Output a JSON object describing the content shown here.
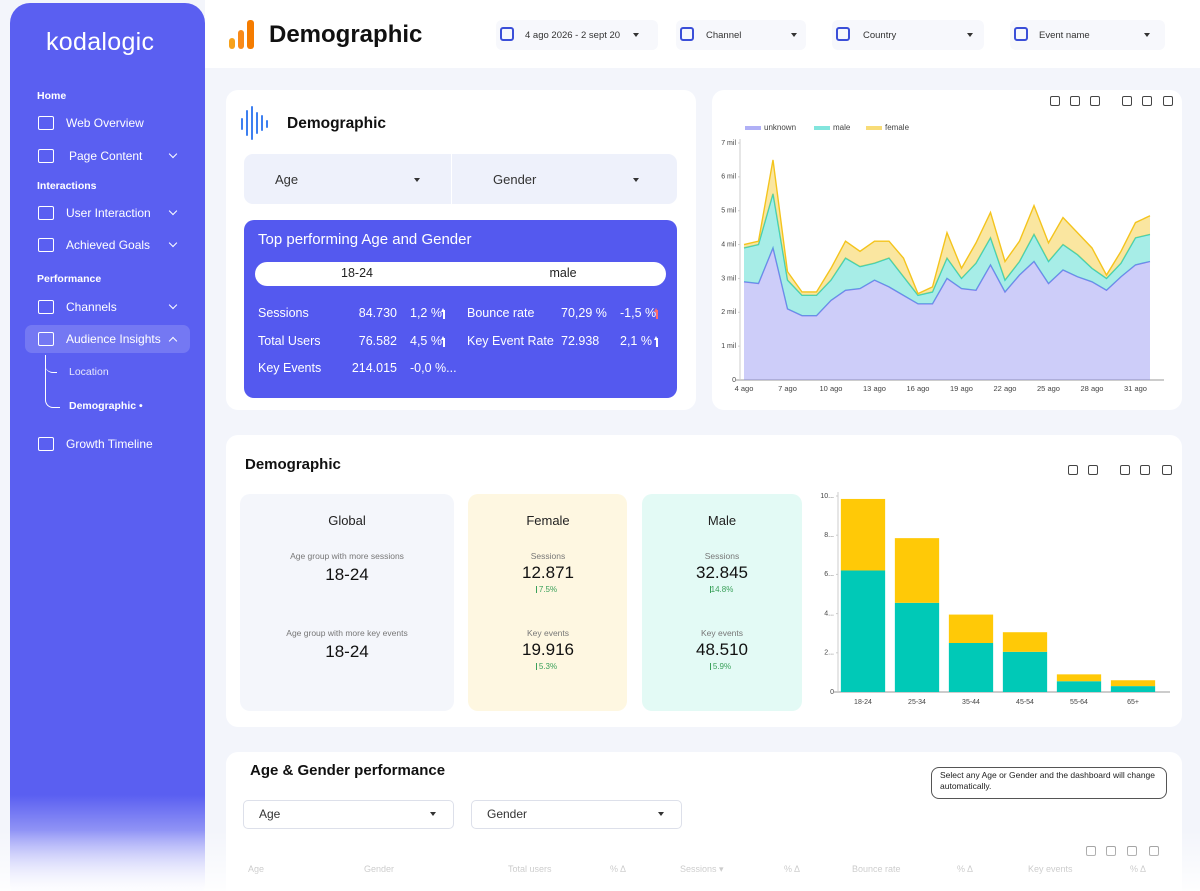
{
  "sidebar": {
    "brand": "kodalogic",
    "sections": [
      {
        "heading": "Home",
        "items": [
          "Web Overview",
          "Page Content"
        ]
      },
      {
        "heading": "Interactions",
        "items": [
          "User Interaction",
          "Achieved Goals"
        ]
      },
      {
        "heading": "Performance",
        "items": [
          "Channels",
          "Audience Insights",
          "Location",
          "Demographic •",
          "Growth Timeline"
        ]
      }
    ]
  },
  "header": {
    "title": "Demographic",
    "filters": [
      "4 ago 2026 - 2 sept 20",
      "Channel",
      "Country",
      "Event name"
    ]
  },
  "top_card": {
    "title": "Demographic",
    "selectors": [
      "Age",
      "Gender"
    ],
    "highlight": {
      "title": "Top performing Age and Gender",
      "age": "18-24",
      "gender": "male",
      "metrics": [
        {
          "label": "Sessions",
          "value": "84.730",
          "change": "1,2 %"
        },
        {
          "label": "Bounce rate",
          "value": "70,29 %",
          "change": "-1,5 %"
        },
        {
          "label": "Total Users",
          "value": "76.582",
          "change": "4,5 %"
        },
        {
          "label": "Key Event Rate",
          "value": "72.938",
          "change": "2,1 %"
        },
        {
          "label": "Key Events",
          "value": "214.015",
          "change": "-0,0 %..."
        }
      ]
    }
  },
  "kpi_section": {
    "title": "Demographic",
    "cards": [
      {
        "title": "Global",
        "rows": [
          {
            "label": "Age group with more sessions",
            "value": "18-24"
          },
          {
            "label": "Age group with more key events",
            "value": "18-24"
          }
        ]
      },
      {
        "title": "Female",
        "rows": [
          {
            "label": "Sessions",
            "value": "12.871",
            "change": "7.5%"
          },
          {
            "label": "Key events",
            "value": "19.916",
            "change": "5.3%"
          }
        ]
      },
      {
        "title": "Male",
        "rows": [
          {
            "label": "Sessions",
            "value": "32.845",
            "change": "14.8%"
          },
          {
            "label": "Key events",
            "value": "48.510",
            "change": "5.9%"
          }
        ]
      }
    ]
  },
  "table_section": {
    "title": "Age & Gender performance",
    "note": "Select any Age or Gender and the dashboard will change automatically.",
    "selectors": [
      "Age",
      "Gender"
    ],
    "columns": [
      "Age",
      "Gender",
      "Total users",
      "% Δ",
      "Sessions ▾",
      "% Δ",
      "Bounce rate",
      "% Δ",
      "Key events",
      "% Δ"
    ]
  },
  "chart_data": [
    {
      "type": "area",
      "stacked": true,
      "legend": "top-left",
      "grid": false,
      "categories": [
        "4 ago",
        null,
        null,
        "7 ago",
        null,
        null,
        "10 ago",
        null,
        null,
        "13 ago",
        null,
        null,
        "16 ago",
        null,
        null,
        "19 ago",
        null,
        null,
        "22 ago",
        null,
        null,
        "25 ago",
        null,
        null,
        "28 ago",
        null,
        null,
        "31 ago",
        null
      ],
      "series": [
        {
          "name": "unknown",
          "color": "#7b7cf0",
          "values": [
            2.9,
            2.85,
            3.9,
            2.1,
            1.9,
            1.9,
            2.35,
            2.65,
            2.7,
            2.95,
            2.75,
            2.5,
            2.25,
            2.25,
            3.0,
            2.7,
            2.65,
            3.4,
            2.6,
            3.1,
            3.5,
            2.85,
            3.25,
            3.05,
            2.9,
            2.65,
            3.05,
            3.4,
            3.5
          ]
        },
        {
          "name": "male",
          "color": "#2ed3c6",
          "values": [
            1.0,
            1.15,
            1.6,
            0.85,
            0.6,
            0.6,
            0.6,
            0.95,
            0.65,
            0.5,
            0.85,
            0.55,
            0.25,
            0.35,
            0.6,
            0.3,
            0.8,
            0.8,
            0.35,
            0.4,
            0.8,
            0.65,
            0.75,
            0.65,
            0.4,
            0.35,
            0.4,
            0.8,
            0.8
          ]
        },
        {
          "name": "female",
          "color": "#f4c41d",
          "values": [
            0.1,
            0.1,
            1.0,
            0.25,
            0.1,
            0.1,
            0.35,
            0.5,
            0.45,
            0.65,
            0.5,
            0.55,
            0.05,
            0.15,
            0.75,
            0.3,
            0.6,
            0.75,
            0.55,
            0.6,
            0.85,
            0.55,
            0.8,
            0.65,
            0.6,
            0.1,
            0.35,
            0.45,
            0.55
          ]
        }
      ],
      "ylim": [
        0,
        7
      ],
      "yticks": [
        0,
        {
          "value": 1,
          "label": "1 mil"
        },
        {
          "value": 2,
          "label": "2 mil"
        },
        {
          "value": 3,
          "label": "3 mil"
        },
        {
          "value": 4,
          "label": "4 mil"
        },
        {
          "value": 5,
          "label": "5 mil"
        },
        {
          "value": 6,
          "label": "6 mil"
        },
        {
          "value": 7,
          "label": "7 mil"
        }
      ]
    },
    {
      "type": "bar",
      "stacked": true,
      "grid": false,
      "categories": [
        "18-24",
        "25-34",
        "35-44",
        "45-54",
        "55-64",
        "65+"
      ],
      "series": [
        {
          "color": "#00c9b7",
          "values": [
            6.2,
            4.55,
            2.5,
            2.05,
            0.55,
            0.3
          ]
        },
        {
          "color": "#ffc907",
          "values": [
            3.65,
            3.3,
            1.45,
            1.0,
            0.35,
            0.3
          ]
        }
      ],
      "ylim": [
        0,
        10
      ],
      "yticks": [
        0,
        {
          "value": 2,
          "label": "2..."
        },
        {
          "value": 4,
          "label": "4..."
        },
        {
          "value": 6,
          "label": "6..."
        },
        {
          "value": 8,
          "label": "8..."
        },
        {
          "value": 10,
          "label": "10..."
        }
      ]
    }
  ]
}
